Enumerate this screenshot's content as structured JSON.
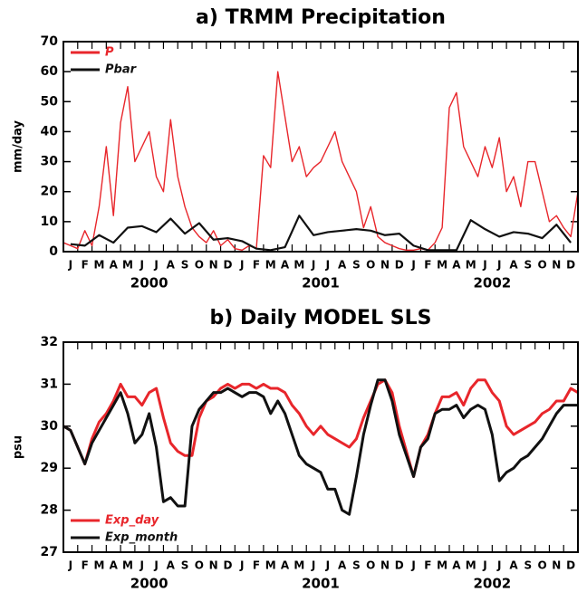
{
  "chart_data": [
    {
      "type": "line",
      "title": "a) TRMM Precipitation",
      "y_label": "mm/day",
      "month_labels": [
        "J",
        "F",
        "M",
        "A",
        "M",
        "J",
        "J",
        "A",
        "S",
        "O",
        "N",
        "D",
        "J",
        "F",
        "M",
        "A",
        "M",
        "J",
        "J",
        "A",
        "S",
        "O",
        "N",
        "D",
        "J",
        "F",
        "M",
        "A",
        "M",
        "J",
        "J",
        "A",
        "S",
        "O",
        "N",
        "D"
      ],
      "year_labels": [
        "2000",
        "2001",
        "2002"
      ],
      "xlim": [
        0,
        36
      ],
      "xticks": [
        0,
        1,
        2,
        3,
        4,
        5,
        6,
        7,
        8,
        9,
        10,
        11,
        12,
        13,
        14,
        15,
        16,
        17,
        18,
        19,
        20,
        21,
        22,
        23,
        24,
        25,
        26,
        27,
        28,
        29,
        30,
        31,
        32,
        33,
        34,
        35,
        36
      ],
      "ylim": [
        0,
        70
      ],
      "yticks": [
        0,
        10,
        20,
        30,
        40,
        50,
        60,
        70
      ],
      "legend": "upper-left",
      "x": [
        0,
        0.5,
        1,
        1.5,
        2,
        2.5,
        3,
        3.5,
        4,
        4.5,
        5,
        5.5,
        6,
        6.5,
        7,
        7.5,
        8,
        8.5,
        9,
        9.5,
        10,
        10.5,
        11,
        11.5,
        12,
        12.5,
        13,
        13.5,
        14,
        14.5,
        15,
        15.5,
        16,
        16.5,
        17,
        17.5,
        18,
        18.5,
        19,
        19.5,
        20,
        20.5,
        21,
        21.5,
        22,
        22.5,
        23,
        23.5,
        24,
        24.5,
        25,
        25.5,
        26,
        26.5,
        27,
        27.5,
        28,
        28.5,
        29,
        29.5,
        30,
        30.5,
        31,
        31.5,
        32,
        32.5,
        33,
        33.5,
        34,
        34.5,
        35,
        35.5,
        36
      ],
      "series": [
        {
          "name": "P",
          "color": "#e8262b",
          "width": 1.4,
          "values": [
            3,
            2,
            1,
            7,
            2,
            15,
            35,
            12,
            43,
            55,
            30,
            35,
            40,
            25,
            20,
            44,
            25,
            15,
            8,
            5,
            3,
            7,
            2,
            4,
            1,
            0.5,
            2,
            1,
            32,
            28,
            60,
            45,
            30,
            35,
            25,
            28,
            30,
            35,
            40,
            30,
            25,
            20,
            8,
            15,
            5,
            3,
            2,
            1,
            0.5,
            0.5,
            1,
            0.5,
            3,
            8,
            48,
            53,
            35,
            30,
            25,
            35,
            28,
            38,
            20,
            25,
            15,
            30,
            30,
            20,
            10,
            12,
            8,
            5,
            20
          ]
        },
        {
          "name": "Pbar",
          "color": "#111111",
          "width": 2.2,
          "x": [
            0.5,
            1.5,
            2.5,
            3.5,
            4.5,
            5.5,
            6.5,
            7.5,
            8.5,
            9.5,
            10.5,
            11.5,
            12.5,
            13.5,
            14.5,
            15.5,
            16.5,
            17.5,
            18.5,
            19.5,
            20.5,
            21.5,
            22.5,
            23.5,
            24.5,
            25.5,
            26.5,
            27.5,
            28.5,
            29.5,
            30.5,
            31.5,
            32.5,
            33.5,
            34.5,
            35.5
          ],
          "values": [
            2.5,
            2,
            5.5,
            3,
            8,
            8.5,
            6.5,
            11,
            6,
            9.5,
            4,
            4.5,
            3.5,
            1,
            0.5,
            1.5,
            12,
            5.5,
            6.5,
            7,
            7.5,
            7,
            5.5,
            6,
            2,
            0.5,
            0.5,
            0.5,
            10.5,
            7.5,
            5,
            6.5,
            6,
            4.5,
            9,
            3
          ]
        }
      ]
    },
    {
      "type": "line",
      "title": "b) Daily MODEL SLS",
      "y_label": "psu",
      "month_labels": [
        "J",
        "F",
        "M",
        "A",
        "M",
        "J",
        "J",
        "A",
        "S",
        "O",
        "N",
        "D",
        "J",
        "F",
        "M",
        "A",
        "M",
        "J",
        "J",
        "A",
        "S",
        "O",
        "N",
        "D",
        "J",
        "F",
        "M",
        "A",
        "M",
        "J",
        "J",
        "A",
        "S",
        "O",
        "N",
        "D"
      ],
      "year_labels": [
        "2000",
        "2001",
        "2002"
      ],
      "xlim": [
        0,
        36
      ],
      "xticks": [
        0,
        1,
        2,
        3,
        4,
        5,
        6,
        7,
        8,
        9,
        10,
        11,
        12,
        13,
        14,
        15,
        16,
        17,
        18,
        19,
        20,
        21,
        22,
        23,
        24,
        25,
        26,
        27,
        28,
        29,
        30,
        31,
        32,
        33,
        34,
        35,
        36
      ],
      "ylim": [
        27,
        32
      ],
      "yticks": [
        27,
        28,
        29,
        30,
        31,
        32
      ],
      "legend": "lower-left",
      "x": [
        0,
        0.5,
        1,
        1.5,
        2,
        2.5,
        3,
        3.5,
        4,
        4.5,
        5,
        5.5,
        6,
        6.5,
        7,
        7.5,
        8,
        8.5,
        9,
        9.5,
        10,
        10.5,
        11,
        11.5,
        12,
        12.5,
        13,
        13.5,
        14,
        14.5,
        15,
        15.5,
        16,
        16.5,
        17,
        17.5,
        18,
        18.5,
        19,
        19.5,
        20,
        20.5,
        21,
        21.5,
        22,
        22.5,
        23,
        23.5,
        24,
        24.5,
        25,
        25.5,
        26,
        26.5,
        27,
        27.5,
        28,
        28.5,
        29,
        29.5,
        30,
        30.5,
        31,
        31.5,
        32,
        32.5,
        33,
        33.5,
        34,
        34.5,
        35,
        35.5,
        36
      ],
      "series": [
        {
          "name": "Exp_day",
          "color": "#e8262b",
          "width": 3,
          "values": [
            30.0,
            29.9,
            29.5,
            29.1,
            29.7,
            30.1,
            30.3,
            30.6,
            31.0,
            30.7,
            30.7,
            30.5,
            30.8,
            30.9,
            30.2,
            29.6,
            29.4,
            29.3,
            29.3,
            30.2,
            30.6,
            30.7,
            30.9,
            31.0,
            30.9,
            31.0,
            31.0,
            30.9,
            31.0,
            30.9,
            30.9,
            30.8,
            30.5,
            30.3,
            30.0,
            29.8,
            30.0,
            29.8,
            29.7,
            29.6,
            29.5,
            29.7,
            30.2,
            30.6,
            31.0,
            31.1,
            30.8,
            30.0,
            29.4,
            28.8,
            29.5,
            29.8,
            30.3,
            30.7,
            30.7,
            30.8,
            30.5,
            30.9,
            31.1,
            31.1,
            30.8,
            30.6,
            30.0,
            29.8,
            29.9,
            30.0,
            30.1,
            30.3,
            30.4,
            30.6,
            30.6,
            30.9,
            30.8
          ]
        },
        {
          "name": "Exp_month",
          "color": "#111111",
          "width": 3,
          "values": [
            30.0,
            29.9,
            29.5,
            29.1,
            29.6,
            29.9,
            30.2,
            30.5,
            30.8,
            30.3,
            29.6,
            29.8,
            30.3,
            29.5,
            28.2,
            28.3,
            28.1,
            28.1,
            30.0,
            30.4,
            30.6,
            30.8,
            30.8,
            30.9,
            30.8,
            30.7,
            30.8,
            30.8,
            30.7,
            30.3,
            30.6,
            30.3,
            29.8,
            29.3,
            29.1,
            29.0,
            28.9,
            28.5,
            28.5,
            28.0,
            27.9,
            28.8,
            29.8,
            30.5,
            31.1,
            31.1,
            30.6,
            29.8,
            29.3,
            28.8,
            29.5,
            29.7,
            30.3,
            30.4,
            30.4,
            30.5,
            30.2,
            30.4,
            30.5,
            30.4,
            29.8,
            28.7,
            28.9,
            29.0,
            29.2,
            29.3,
            29.5,
            29.7,
            30.0,
            30.3,
            30.5,
            30.5,
            30.5
          ]
        }
      ]
    }
  ]
}
